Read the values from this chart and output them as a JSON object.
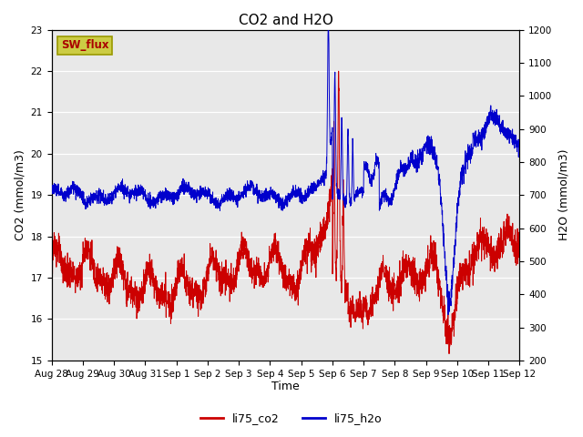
{
  "title": "CO2 and H2O",
  "ylabel_left": "CO2 (mmol/m3)",
  "ylabel_right": "H2O (mmol/m3)",
  "xlabel": "Time",
  "ylim_left": [
    15.0,
    23.0
  ],
  "ylim_right": [
    200,
    1200
  ],
  "co2_color": "#cc0000",
  "h2o_color": "#0000cc",
  "bg_color": "#e8e8e8",
  "sw_flux_box_facecolor": "#cccc44",
  "sw_flux_box_edgecolor": "#999900",
  "sw_flux_text_color": "#aa0000",
  "xtick_labels": [
    "Aug 28",
    "Aug 29",
    "Aug 30",
    "Aug 31",
    "Sep 1",
    "Sep 2",
    "Sep 3",
    "Sep 4",
    "Sep 5",
    "Sep 6",
    "Sep 7",
    "Sep 8",
    "Sep 9",
    "Sep 10",
    "Sep 11",
    "Sep 12"
  ],
  "legend_co2": "li75_co2",
  "legend_h2o": "li75_h2o",
  "title_fontsize": 11,
  "axis_label_fontsize": 9,
  "tick_fontsize": 7.5,
  "legend_fontsize": 9
}
